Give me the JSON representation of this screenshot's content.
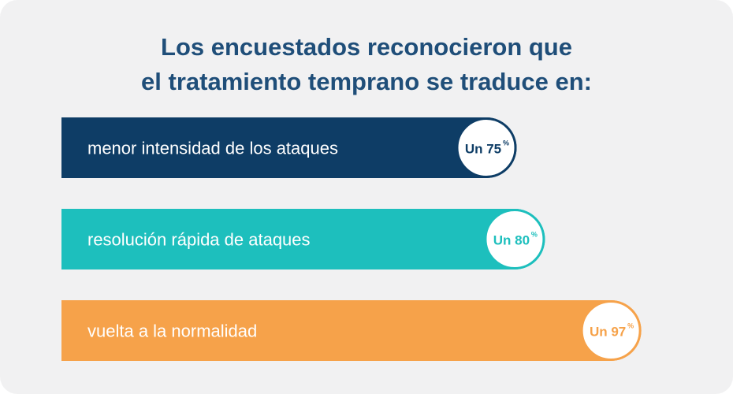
{
  "title_lines": [
    "Los encuestados reconocieron que",
    "el tratamiento temprano se traduce en:"
  ],
  "chart_data": {
    "type": "bar",
    "orientation": "horizontal",
    "categories": [
      "menor intensidad de los ataques",
      "resolución rápida de ataques",
      "vuelta a la normalidad"
    ],
    "values": [
      75,
      80,
      97
    ],
    "value_labels": [
      "Un 75",
      "Un 80",
      "Un 97"
    ],
    "value_unit": "%",
    "xlim": [
      0,
      100
    ],
    "grid": false,
    "colors": [
      "#0e3d66",
      "#1dbfbd",
      "#f6a24a"
    ]
  }
}
